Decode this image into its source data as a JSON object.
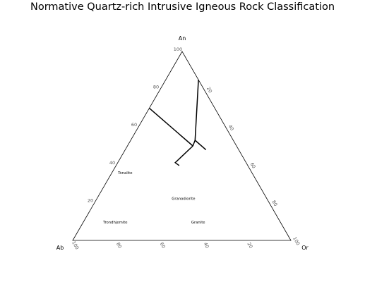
{
  "title": "Normative Quartz-rich Intrusive Igneous Rock Classification",
  "corners": {
    "top": "An",
    "left": "Ab",
    "right": "Or"
  },
  "an_ticks": [
    {
      "value": 20,
      "label": "20"
    },
    {
      "value": 40,
      "label": "40"
    },
    {
      "value": 60,
      "label": "60"
    },
    {
      "value": 80,
      "label": "80"
    },
    {
      "value": 100,
      "label": "100"
    }
  ],
  "or_an_edge_ticks": [
    {
      "value": 80,
      "label": "20"
    },
    {
      "value": 60,
      "label": "40"
    },
    {
      "value": 40,
      "label": "60"
    },
    {
      "value": 20,
      "label": "80"
    },
    {
      "value": 0,
      "label": "100"
    }
  ],
  "ab_ticks": [
    {
      "value": 100,
      "label": "100"
    },
    {
      "value": 80,
      "label": "80"
    },
    {
      "value": 60,
      "label": "60"
    },
    {
      "value": 40,
      "label": "40"
    },
    {
      "value": 20,
      "label": "20"
    }
  ],
  "boundaries": [
    {
      "name": "tonalite-trondhjemite-granodiorite",
      "points": [
        [
          85,
          0,
          15
        ],
        [
          53,
          17.5,
          29.5
        ],
        [
          50,
          20,
          30
        ]
      ]
    },
    {
      "name": "tonalite-granodiorite",
      "points": [
        [
          53,
          17.5,
          29.5
        ],
        [
          48,
          15,
          37
        ]
      ]
    },
    {
      "name": "trondhjemite-granite",
      "points": [
        [
          50,
          20,
          30
        ],
        [
          70,
          30,
          0
        ]
      ]
    },
    {
      "name": "granodiorite-granite",
      "points": [
        [
          50,
          20,
          30
        ],
        [
          36.7,
          29,
          23.5
        ],
        [
          31.5,
          25,
          23
        ]
      ]
    }
  ],
  "fields": [
    {
      "name": "Tonalite",
      "label": "Tonalite",
      "an": 35,
      "ab": 58.5,
      "or": 6.5
    },
    {
      "name": "Granodiorite",
      "label": "Granodiorite",
      "an": 21.5,
      "ab": 38.5,
      "or": 40
    },
    {
      "name": "Trondhjemite",
      "label": "Trondhjemite",
      "an": 9,
      "ab": 76,
      "or": 15
    },
    {
      "name": "Granite",
      "label": "Granite",
      "an": 9,
      "ab": 38,
      "or": 53
    }
  ]
}
